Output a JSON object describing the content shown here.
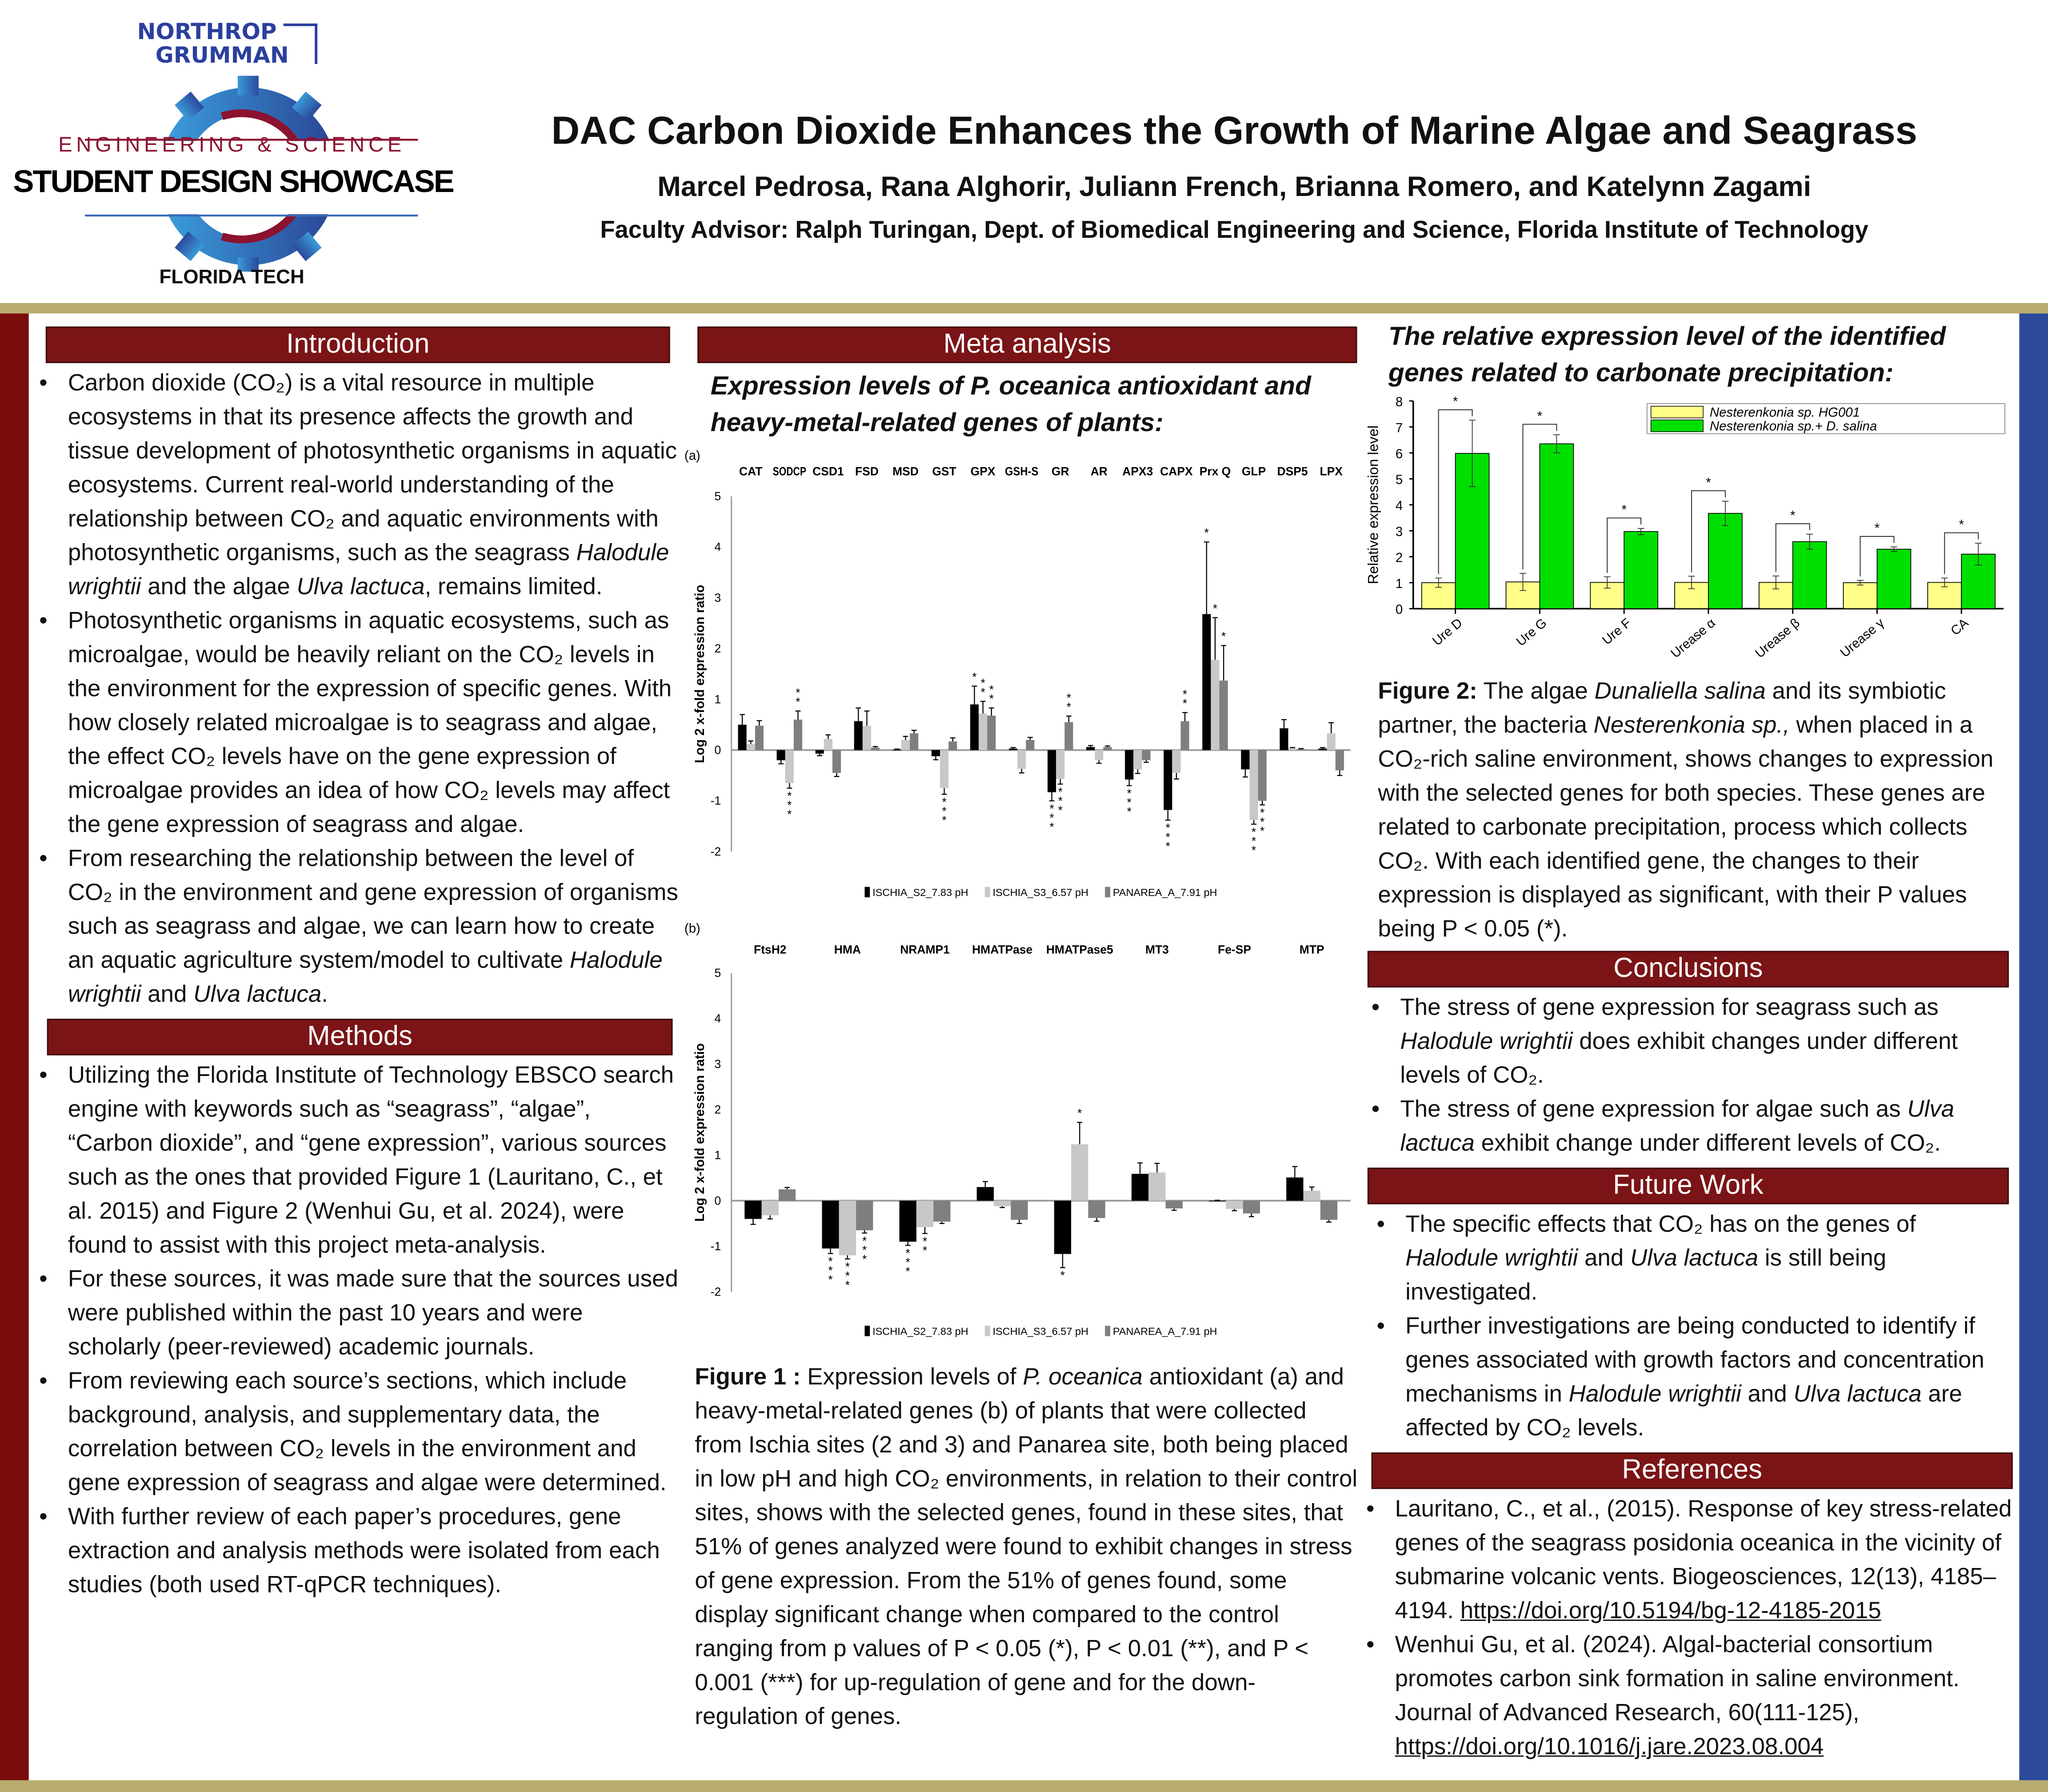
{
  "header": {
    "title": "DAC Carbon Dioxide Enhances the Growth of Marine Algae and Seagrass",
    "authors": "Marcel Pedrosa, Rana Alghorir, Juliann French, Brianna Romero, and Katelynn Zagami",
    "advisor": "Faculty Advisor: Ralph Turingan, Dept. of  Biomedical Engineering and Science, Florida Institute of Technology"
  },
  "logo": {
    "sponsor_line1": "NORTHROP",
    "sponsor_line2": "GRUMMAN",
    "event_line1": "ENGINEERING & SCIENCE",
    "event_line2": "STUDENT DESIGN SHOWCASE",
    "school": "FLORIDA TECH"
  },
  "colors": {
    "maroon": "#7a1416",
    "gold": "#b8ad6e",
    "blue": "#2b4a9b",
    "green": "#00e000",
    "yellow": "#ffff88"
  },
  "introduction": {
    "heading": "Introduction",
    "bullets": [
      [
        {
          "t": "Carbon dioxide (CO₂) is a vital resource in multiple ecosystems in that its presence affects the growth and tissue development of photosynthetic organisms in aquatic ecosystems. Current real-world understanding of the relationship between CO₂ and aquatic environments with photosynthetic organisms, such as the seagrass "
        },
        {
          "t": "Halodule wrightii",
          "s": "i"
        },
        {
          "t": " and the algae "
        },
        {
          "t": "Ulva lactuca",
          "s": "i"
        },
        {
          "t": ", remains limited."
        }
      ],
      [
        {
          "t": "Photosynthetic organisms in aquatic ecosystems, such as microalgae, would be heavily reliant on the CO₂ levels in the environment for the expression of specific genes. With how closely related microalgae is to seagrass and algae, the effect CO₂ levels have on the gene expression of microalgae provides an idea of how CO₂ levels may affect the gene expression of seagrass and algae."
        }
      ],
      [
        {
          "t": "From researching the relationship between the level of CO₂ in the environment and  gene expression of organisms such as seagrass and algae, we can learn how to create an aquatic agriculture system/model to cultivate "
        },
        {
          "t": "Halodule wrightii",
          "s": "i"
        },
        {
          "t": " and "
        },
        {
          "t": "Ulva lactuca",
          "s": "i"
        },
        {
          "t": "."
        }
      ]
    ]
  },
  "methods": {
    "heading": "Methods",
    "bullets": [
      [
        {
          "t": "Utilizing the Florida Institute of Technology EBSCO search engine with keywords such as “seagrass”, “algae”, “Carbon dioxide”, and “gene expression”, various sources such as the ones that provided Figure 1 (Lauritano, C., et al. 2015) and Figure 2 (Wenhui Gu, et al. 2024), were found to assist with this project meta-analysis."
        }
      ],
      [
        {
          "t": "For these sources, it was made sure that the sources used were published within the past 10 years and were scholarly (peer-reviewed) academic journals."
        }
      ],
      [
        {
          "t": "From reviewing each source’s sections, which include background, analysis, and supplementary data, the correlation between CO₂ levels in the environment and gene expression of seagrass and algae were determined."
        }
      ],
      [
        {
          "t": "With further review of each paper’s procedures, gene extraction and analysis methods were isolated from each studies (both used RT-qPCR techniques)."
        }
      ]
    ]
  },
  "meta": {
    "heading": "Meta analysis",
    "subheading": "Expression levels of P. oceanica antioxidant and heavy-metal-related genes of plants:",
    "figure1_caption": [
      {
        "t": "Figure 1 :",
        "s": "b"
      },
      {
        "t": " Expression levels of "
      },
      {
        "t": "P. oceanica",
        "s": "i"
      },
      {
        "t": " antioxidant (a) and heavy-metal-related genes (b) of plants that were collected from Ischia sites (2 and 3) and Panarea site, both being placed in low pH and high CO₂ environments, in relation to their control sites, shows with the selected genes, found in these sites, that 51% of genes analyzed were found to exhibit changes in stress of gene expression. From the 51% of genes found, some display significant change when compared to the control ranging from p values of P < 0.05 (*), P < 0.01 (**), and P < 0.001 (***) for up-regulation of gene and for the down-regulation of genes."
      }
    ]
  },
  "carbonate": {
    "heading": "The relative expression level of the identified genes related to carbonate precipitation:",
    "figure2_caption": [
      {
        "t": "Figure 2:",
        "s": "b"
      },
      {
        "t": " The algae "
      },
      {
        "t": "Dunaliella salina",
        "s": "i"
      },
      {
        "t": " and its symbiotic partner, the bacteria "
      },
      {
        "t": "Nesterenkonia sp.,",
        "s": "i"
      },
      {
        "t": " when placed in a CO₂-rich saline environment, shows changes to expression with the selected genes for both species. These genes are related to carbonate precipitation, process which collects CO₂. With each identified gene, the changes to their expression is displayed as significant, with their P values being P < 0.05 (*)."
      }
    ]
  },
  "conclusions": {
    "heading": "Conclusions",
    "bullets": [
      [
        {
          "t": "The stress of gene expression for seagrass such as "
        },
        {
          "t": "Halodule wrightii",
          "s": "i"
        },
        {
          "t": " does exhibit changes under different levels of CO₂."
        }
      ],
      [
        {
          "t": "The stress of gene expression for algae such as "
        },
        {
          "t": "Ulva lactuca",
          "s": "i"
        },
        {
          "t": " exhibit change under different levels of CO₂."
        }
      ]
    ]
  },
  "future_work": {
    "heading": "Future Work",
    "bullets": [
      [
        {
          "t": "The specific effects that CO₂ has on the genes of "
        },
        {
          "t": "Halodule wrightii",
          "s": "i"
        },
        {
          "t": " and "
        },
        {
          "t": "Ulva lactuca",
          "s": "i"
        },
        {
          "t": " is still being investigated."
        }
      ],
      [
        {
          "t": "Further investigations are being conducted to identify if genes associated with growth factors and concentration mechanisms in "
        },
        {
          "t": "Halodule wrightii",
          "s": "i"
        },
        {
          "t": " and "
        },
        {
          "t": "Ulva lactuca",
          "s": "i"
        },
        {
          "t": " are affected by CO₂ levels."
        }
      ]
    ]
  },
  "references": {
    "heading": "References",
    "bullets": [
      [
        {
          "t": "Lauritano, C., et al., (2015). Response of key stress-related genes of the seagrass posidonia oceanica in the vicinity of submarine volcanic vents. Biogeosciences, 12(13), 4185–4194. "
        },
        {
          "t": "https://doi.org/10.5194/bg-12-4185-2015",
          "s": "a"
        }
      ],
      [
        {
          "t": " Wenhui Gu, et al. (2024). Algal-bacterial consortium promotes carbon sink formation in saline environment. Journal of Advanced Research, 60(111-125), "
        },
        {
          "t": "https://doi.org/10.1016/j.jare.2023.08.004",
          "s": "a"
        }
      ]
    ]
  },
  "chart_data": [
    {
      "type": "bar",
      "panel": "(a)",
      "ylabel": "Log 2 x-fold expression ratio",
      "ylim": [
        -2,
        5
      ],
      "yticks": [
        "-2",
        "-1",
        "0",
        "1",
        "2",
        "3",
        "4",
        "5"
      ],
      "categories": [
        "CAT",
        "SODCP",
        "CSD1",
        "FSD",
        "MSD",
        "GST",
        "GPX",
        "GSH-S",
        "GR",
        "AR",
        "APX3",
        "CAPX",
        "Prx Q",
        "GLP",
        "DSP5",
        "LPX"
      ],
      "series": [
        {
          "name": "ISCHIA_S2_7.83 pH",
          "color": "#000000",
          "values": [
            0.5,
            -0.2,
            -0.07,
            0.57,
            0.01,
            -0.12,
            0.9,
            0.03,
            -0.83,
            0.06,
            -0.58,
            -1.18,
            2.68,
            -0.38,
            0.43,
            0.03
          ],
          "errors": [
            0.2,
            0.07,
            0.04,
            0.26,
            0.01,
            0.07,
            0.36,
            0.02,
            0.17,
            0.03,
            0.12,
            0.2,
            1.42,
            0.15,
            0.17,
            0.02
          ],
          "sig": [
            "",
            "",
            "",
            "",
            "",
            "",
            "*",
            "",
            "***",
            "",
            "***",
            "***",
            "*",
            "",
            "",
            ""
          ]
        },
        {
          "name": "ISCHIA_S3_6.57 pH",
          "color": "#c8c8c8",
          "values": [
            0.12,
            -0.65,
            0.22,
            0.48,
            0.2,
            -0.75,
            0.72,
            -0.37,
            -0.57,
            -0.2,
            -0.38,
            -0.45,
            1.78,
            -1.38,
            0.04,
            0.33
          ],
          "errors": [
            0.06,
            0.1,
            0.08,
            0.29,
            0.07,
            0.12,
            0.24,
            0.08,
            0.1,
            0.06,
            0.08,
            0.12,
            0.83,
            0.08,
            0.01,
            0.21
          ],
          "sig": [
            "",
            "***",
            "",
            "",
            "",
            "***",
            "**",
            "",
            "***",
            "",
            "",
            "",
            "*",
            "***",
            "",
            ""
          ]
        },
        {
          "name": "PANAREA_A_7.91 pH",
          "color": "#7f7f7f",
          "values": [
            0.48,
            0.6,
            -0.45,
            0.05,
            0.33,
            0.17,
            0.68,
            0.2,
            0.55,
            0.06,
            -0.2,
            0.57,
            1.37,
            -1.0,
            0.02,
            -0.4
          ],
          "errors": [
            0.1,
            0.17,
            0.07,
            0.02,
            0.06,
            0.07,
            0.15,
            0.05,
            0.12,
            0.02,
            0.04,
            0.17,
            0.69,
            0.08,
            0.01,
            0.1
          ],
          "sig": [
            "",
            "**",
            "",
            "",
            "",
            "",
            "**",
            "",
            "**",
            "",
            "",
            "**",
            "*",
            "***",
            "",
            ""
          ]
        }
      ]
    },
    {
      "type": "bar",
      "panel": "(b)",
      "ylabel": "Log 2 x-fold expression ratio",
      "ylim": [
        -2,
        5
      ],
      "yticks": [
        "-2",
        "-1",
        "0",
        "1",
        "2",
        "3",
        "4",
        "5"
      ],
      "categories": [
        "FtsH2",
        "HMA",
        "NRAMP1",
        "HMATPase",
        "HMATPase5",
        "MT3",
        "Fe-SP",
        "MTP"
      ],
      "series": [
        {
          "name": "ISCHIA_S2_7.83 pH",
          "color": "#000000",
          "values": [
            -0.4,
            -1.05,
            -0.9,
            0.3,
            -1.17,
            0.59,
            0.0,
            0.51
          ],
          "errors": [
            0.12,
            0.11,
            0.08,
            0.12,
            0.3,
            0.24,
            0.01,
            0.24
          ],
          "sig": [
            "",
            "***",
            "***",
            "",
            "*",
            "",
            "",
            ""
          ]
        },
        {
          "name": "ISCHIA_S3_6.57 pH",
          "color": "#c8c8c8",
          "values": [
            -0.32,
            -1.2,
            -0.58,
            -0.12,
            1.24,
            0.62,
            -0.18,
            0.22
          ],
          "errors": [
            0.08,
            0.08,
            0.14,
            0.03,
            0.48,
            0.2,
            0.04,
            0.08
          ],
          "sig": [
            "",
            "***",
            "**",
            "",
            "*",
            "",
            "",
            ""
          ]
        },
        {
          "name": "PANAREA_A_7.91 pH",
          "color": "#7f7f7f",
          "values": [
            0.25,
            -0.65,
            -0.46,
            -0.42,
            -0.38,
            -0.17,
            -0.28,
            -0.42
          ],
          "errors": [
            0.04,
            0.06,
            0.04,
            0.08,
            0.07,
            0.04,
            0.07,
            0.05
          ],
          "sig": [
            "",
            "***",
            "",
            "",
            "",
            "",
            "",
            ""
          ]
        }
      ]
    },
    {
      "type": "bar",
      "ylabel": "Relative expression level",
      "ylim": [
        0,
        8
      ],
      "yticks": [
        "0",
        "1",
        "2",
        "3",
        "4",
        "5",
        "6",
        "7",
        "8"
      ],
      "categories": [
        "Ure D",
        "Ure G",
        "Ure F",
        "Urease α",
        "Urease β",
        "Urease γ",
        "CA"
      ],
      "series": [
        {
          "name": "Nesterenkonia sp. HG001",
          "color": "#ffff88",
          "values": [
            1.0,
            1.03,
            1.01,
            1.01,
            1.01,
            1.0,
            1.01
          ],
          "errors": [
            0.18,
            0.33,
            0.22,
            0.24,
            0.25,
            0.09,
            0.17
          ]
        },
        {
          "name": "Nesterenkonia sp.+ D. salina",
          "color": "#00e000",
          "values": [
            5.98,
            6.35,
            2.97,
            3.67,
            2.58,
            2.29,
            2.1
          ],
          "errors": [
            1.28,
            0.35,
            0.12,
            0.47,
            0.29,
            0.09,
            0.42
          ]
        }
      ],
      "significance": [
        "*",
        "*",
        "*",
        "*",
        "*",
        "*",
        "*"
      ]
    }
  ]
}
